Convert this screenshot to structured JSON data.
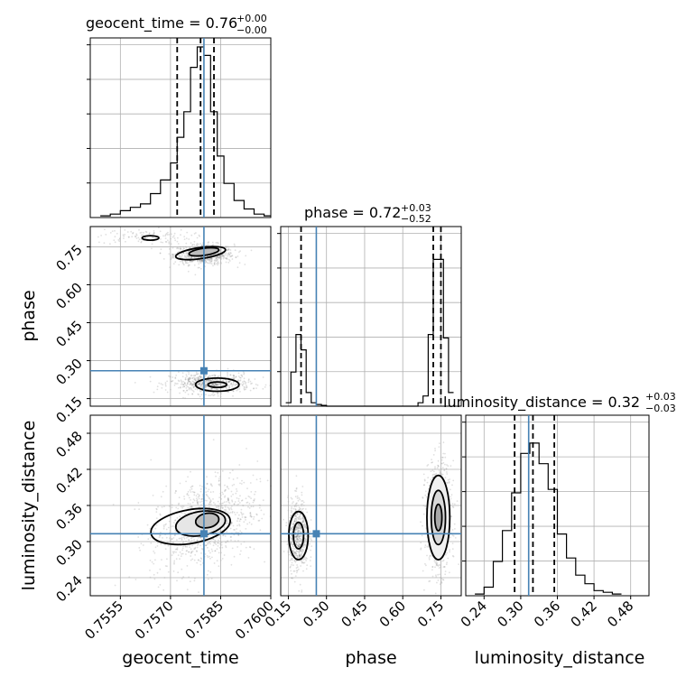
{
  "chart_data": {
    "type": "corner",
    "parameters": [
      "geocent_time",
      "phase",
      "luminosity_distance"
    ],
    "truth": {
      "geocent_time": 0.758,
      "phase": 0.26,
      "luminosity_distance": 0.313
    },
    "truth_color": "#4682b4",
    "grid": true,
    "titles": {
      "geocent_time": {
        "main": "geocent_time = 0.76",
        "sup": "+0.00",
        "sub": "−0.00"
      },
      "phase": {
        "main": "phase = 0.72",
        "sup": "+0.03",
        "sub": "−0.52"
      },
      "luminosity_distance": {
        "main": "luminosity_distance = 0.32",
        "sup": "+0.03",
        "sub": "−0.03"
      }
    },
    "axes": {
      "geocent_time": {
        "label": "geocent_time",
        "range": [
          0.7546,
          0.76
        ],
        "ticks": [
          "0.7555",
          "0.7570",
          "0.7585",
          "0.7600"
        ],
        "tick_values": [
          0.7555,
          0.757,
          0.7585,
          0.76
        ]
      },
      "phase": {
        "label": "phase",
        "range": [
          0.12,
          0.83
        ],
        "ticks": [
          "0.15",
          "0.30",
          "0.45",
          "0.60",
          "0.75"
        ],
        "tick_values": [
          0.15,
          0.3,
          0.45,
          0.6,
          0.75
        ]
      },
      "luminosity_distance": {
        "label": "luminosity_distance",
        "range": [
          0.21,
          0.51
        ],
        "ticks": [
          "0.24",
          "0.30",
          "0.36",
          "0.42",
          "0.48"
        ],
        "tick_values": [
          0.24,
          0.3,
          0.36,
          0.42,
          0.48
        ]
      }
    },
    "quantiles": {
      "geocent_time": [
        0.7572,
        0.7579,
        0.7583
      ],
      "phase": [
        0.2,
        0.72,
        0.75
      ],
      "luminosity_distance": [
        0.29,
        0.32,
        0.355
      ]
    },
    "histograms": {
      "geocent_time": {
        "edges": [
          0.7549,
          0.7552,
          0.7555,
          0.7558,
          0.7561,
          0.7564,
          0.7567,
          0.757,
          0.7572,
          0.7574,
          0.7576,
          0.7578,
          0.758,
          0.7582,
          0.7584,
          0.7586,
          0.7589,
          0.7592,
          0.7595,
          0.7598,
          0.76
        ],
        "counts": [
          0.01,
          0.02,
          0.04,
          0.06,
          0.08,
          0.14,
          0.22,
          0.32,
          0.47,
          0.62,
          0.88,
          1.0,
          0.95,
          0.62,
          0.36,
          0.2,
          0.1,
          0.05,
          0.02,
          0.01
        ]
      },
      "phase": {
        "edges": [
          0.14,
          0.16,
          0.18,
          0.2,
          0.22,
          0.24,
          0.26,
          0.28,
          0.3,
          0.66,
          0.68,
          0.7,
          0.72,
          0.74,
          0.76,
          0.78,
          0.8
        ],
        "counts": [
          0.02,
          0.2,
          0.42,
          0.33,
          0.08,
          0.02,
          0.01,
          0.005,
          0,
          0.02,
          0.06,
          0.42,
          0.86,
          0.86,
          0.4,
          0.08
        ]
      },
      "luminosity_distance": {
        "edges": [
          0.225,
          0.24,
          0.255,
          0.27,
          0.285,
          0.3,
          0.315,
          0.33,
          0.345,
          0.36,
          0.375,
          0.39,
          0.405,
          0.42,
          0.435,
          0.45,
          0.465
        ],
        "counts": [
          0.01,
          0.05,
          0.2,
          0.38,
          0.6,
          0.83,
          0.89,
          0.77,
          0.62,
          0.36,
          0.22,
          0.12,
          0.07,
          0.03,
          0.02,
          0.01
        ]
      }
    }
  }
}
